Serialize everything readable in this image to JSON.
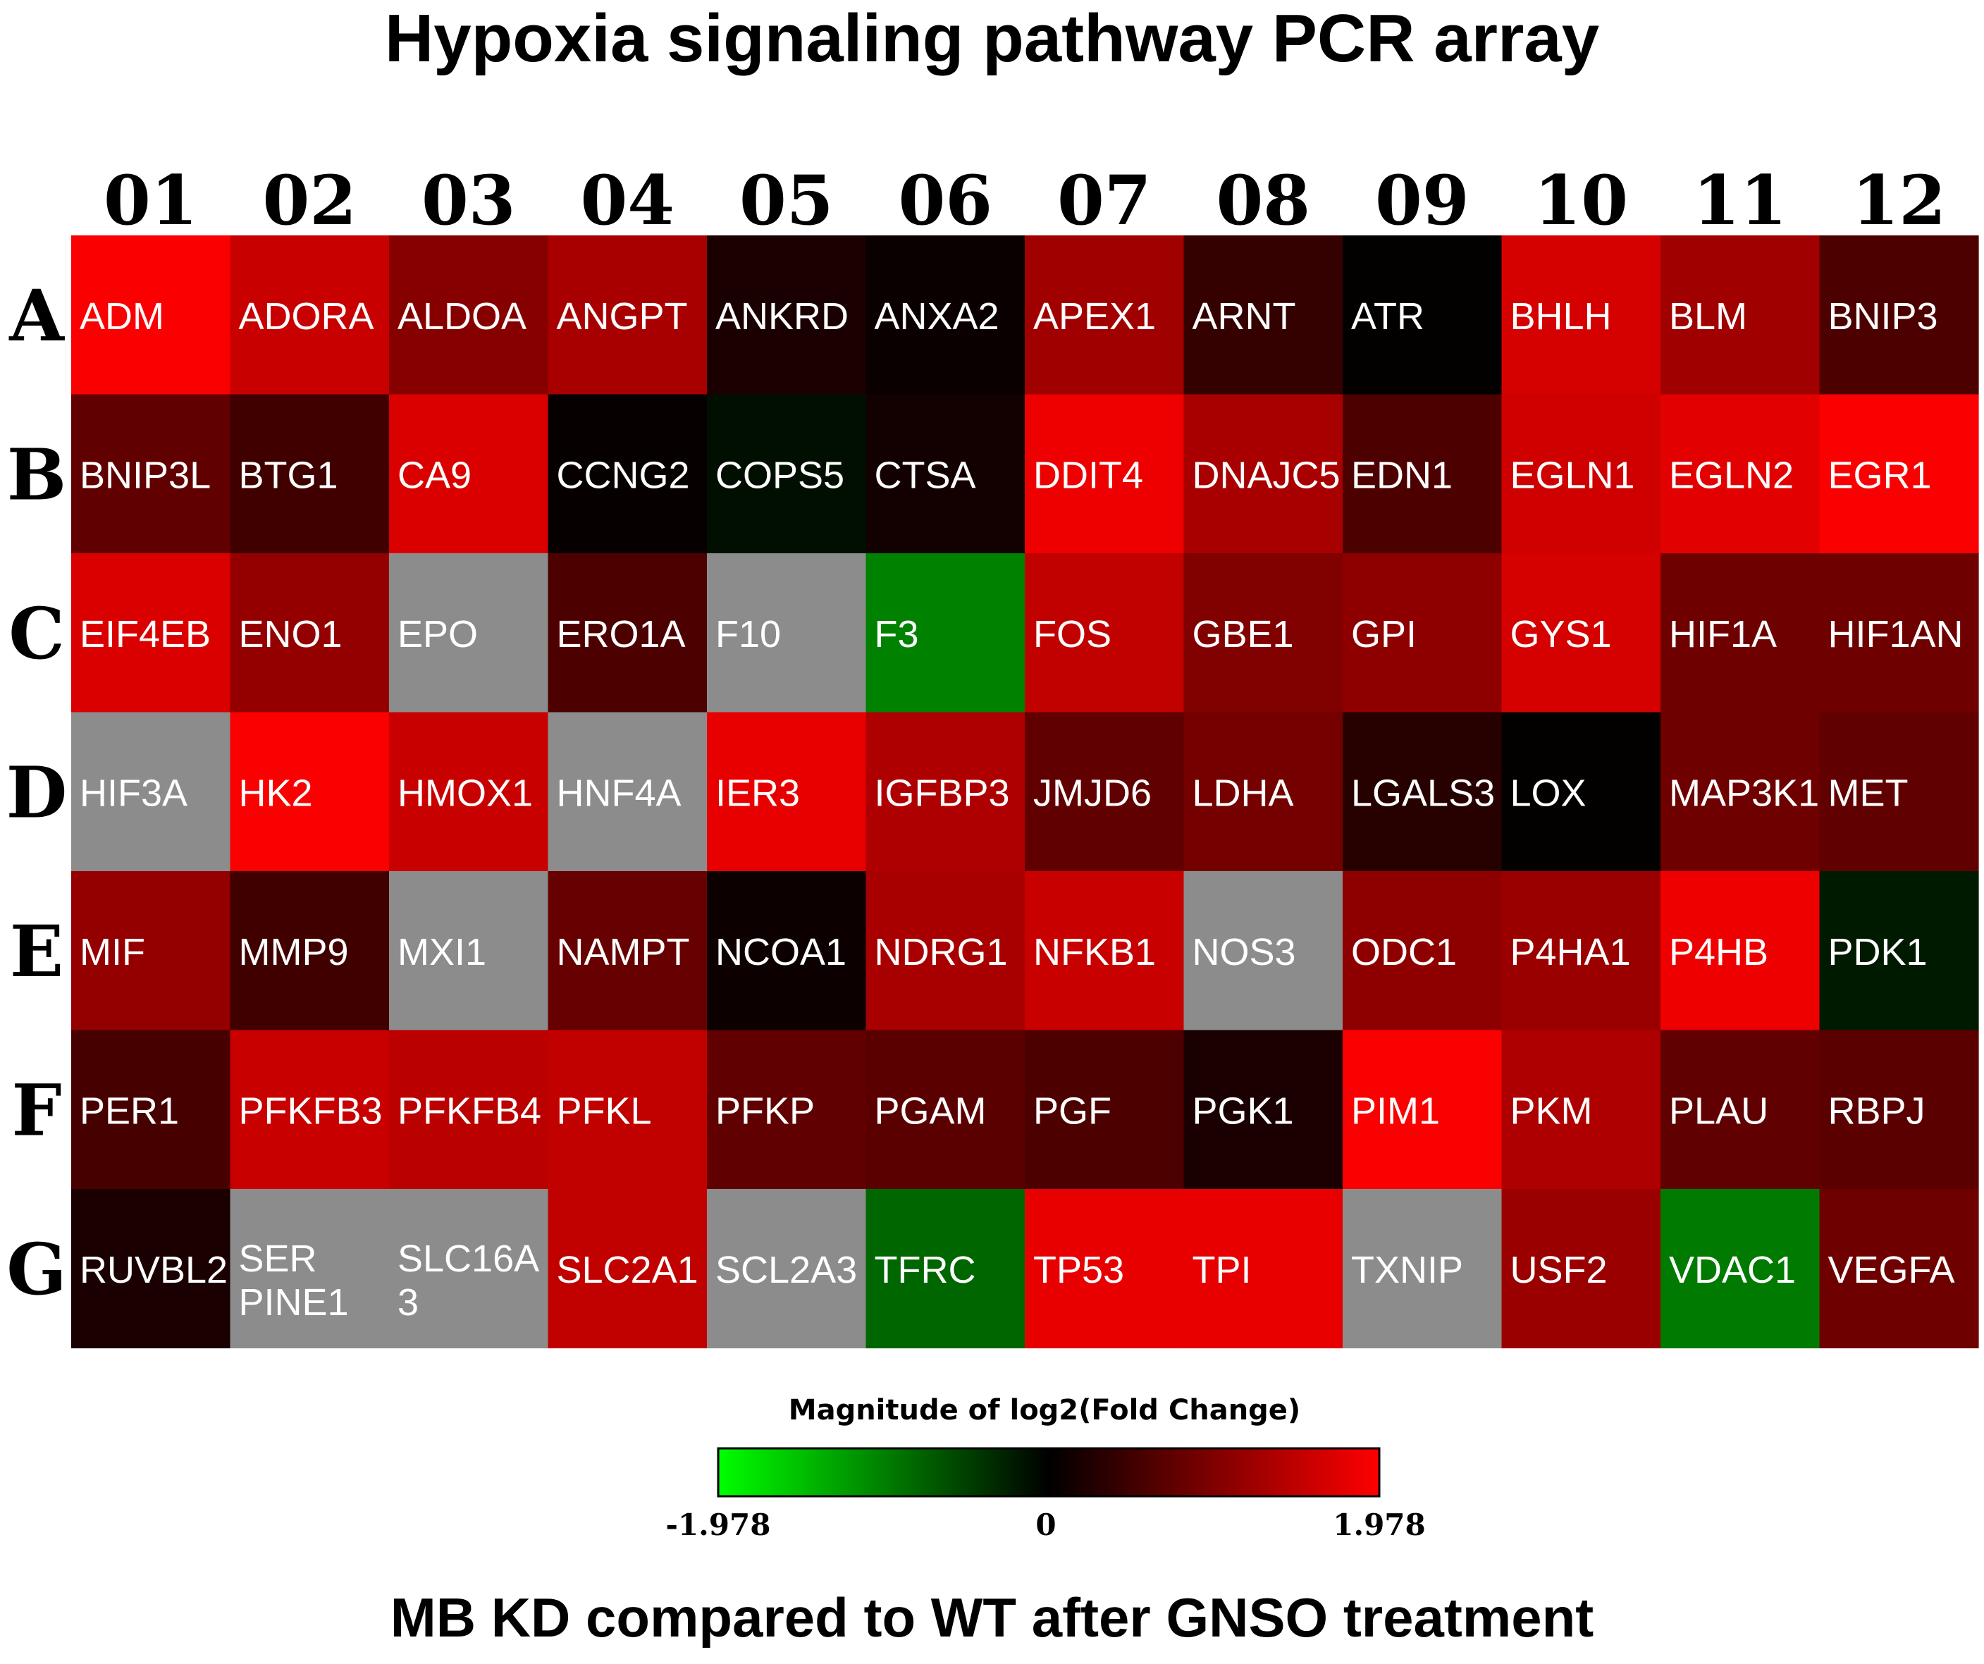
{
  "title": "Hypoxia signaling pathway PCR array",
  "subtitle": "MB KD compared to WT after GNSO treatment",
  "chart_data": {
    "type": "heatmap",
    "columns": [
      "01",
      "02",
      "03",
      "04",
      "05",
      "06",
      "07",
      "08",
      "09",
      "10",
      "11",
      "12"
    ],
    "rows": [
      "A",
      "B",
      "C",
      "D",
      "E",
      "F",
      "G"
    ],
    "cells": [
      [
        {
          "gene": "ADM",
          "value": 1.95
        },
        {
          "gene": "ADORA",
          "value": 1.55
        },
        {
          "gene": "ALDOA",
          "value": 1.05
        },
        {
          "gene": "ANGPT",
          "value": 1.3
        },
        {
          "gene": "ANKRD",
          "value": 0.2
        },
        {
          "gene": "ANXA2",
          "value": 0.08
        },
        {
          "gene": "APEX1",
          "value": 1.25
        },
        {
          "gene": "ARNT",
          "value": 0.4
        },
        {
          "gene": "ATR",
          "value": 0.02
        },
        {
          "gene": "BHLH",
          "value": 1.65
        },
        {
          "gene": "BLM",
          "value": 1.25
        },
        {
          "gene": "BNIP3",
          "value": 0.6
        }
      ],
      [
        {
          "gene": "BNIP3L",
          "value": 0.75
        },
        {
          "gene": "BTG1",
          "value": 0.5
        },
        {
          "gene": "CA9",
          "value": 1.7
        },
        {
          "gene": "CCNG2",
          "value": 0.05
        },
        {
          "gene": "COPS5",
          "value": -0.12
        },
        {
          "gene": "CTSA",
          "value": 0.15
        },
        {
          "gene": "DDIT4",
          "value": 1.85
        },
        {
          "gene": "DNAJC5",
          "value": 1.3
        },
        {
          "gene": "EDN1",
          "value": 0.6
        },
        {
          "gene": "EGLN1",
          "value": 1.6
        },
        {
          "gene": "EGLN2",
          "value": 1.75
        },
        {
          "gene": "EGR1",
          "value": 1.95
        }
      ],
      [
        {
          "gene": "EIF4EB",
          "value": 1.7
        },
        {
          "gene": "ENO1",
          "value": 1.15
        },
        {
          "gene": "EPO",
          "value": null
        },
        {
          "gene": "ERO1A",
          "value": 0.6
        },
        {
          "gene": "F10",
          "value": null
        },
        {
          "gene": "F3",
          "value": -1.0
        },
        {
          "gene": "FOS",
          "value": 1.5
        },
        {
          "gene": "GBE1",
          "value": 1.0
        },
        {
          "gene": "GPI",
          "value": 1.1
        },
        {
          "gene": "GYS1",
          "value": 1.65
        },
        {
          "gene": "HIF1A",
          "value": 0.85
        },
        {
          "gene": "HIF1AN",
          "value": 0.85
        }
      ],
      [
        {
          "gene": "HIF3A",
          "value": null
        },
        {
          "gene": "HK2",
          "value": 1.95
        },
        {
          "gene": "HMOX1",
          "value": 1.55
        },
        {
          "gene": "HNF4A",
          "value": null
        },
        {
          "gene": "IER3",
          "value": 1.8
        },
        {
          "gene": "IGFBP3",
          "value": 1.35
        },
        {
          "gene": "JMJD6",
          "value": 0.75
        },
        {
          "gene": "LDHA",
          "value": 0.9
        },
        {
          "gene": "LGALS3",
          "value": 0.3
        },
        {
          "gene": "LOX",
          "value": 0.02
        },
        {
          "gene": "MAP3K1",
          "value": 0.85
        },
        {
          "gene": "MET",
          "value": 0.75
        }
      ],
      [
        {
          "gene": "MIF",
          "value": 1.15
        },
        {
          "gene": "MMP9",
          "value": 0.5
        },
        {
          "gene": "MXI1",
          "value": null
        },
        {
          "gene": "NAMPT",
          "value": 0.8
        },
        {
          "gene": "NCOA1",
          "value": 0.1
        },
        {
          "gene": "NDRG1",
          "value": 1.3
        },
        {
          "gene": "NFKB1",
          "value": 1.55
        },
        {
          "gene": "NOS3",
          "value": null
        },
        {
          "gene": "ODC1",
          "value": 1.1
        },
        {
          "gene": "P4HA1",
          "value": 1.2
        },
        {
          "gene": "P4HB",
          "value": 1.85
        },
        {
          "gene": "PDK1",
          "value": -0.2
        }
      ],
      [
        {
          "gene": "PER1",
          "value": 0.55
        },
        {
          "gene": "PFKFB3",
          "value": 1.55
        },
        {
          "gene": "PFKFB4",
          "value": 1.45
        },
        {
          "gene": "PFKL",
          "value": 1.5
        },
        {
          "gene": "PFKP",
          "value": 0.75
        },
        {
          "gene": "PGAM",
          "value": 0.7
        },
        {
          "gene": "PGF",
          "value": 0.6
        },
        {
          "gene": "PGK1",
          "value": 0.2
        },
        {
          "gene": "PIM1",
          "value": 1.95
        },
        {
          "gene": "PKM",
          "value": 1.35
        },
        {
          "gene": "PLAU",
          "value": 0.75
        },
        {
          "gene": "RBPJ",
          "value": 0.7
        }
      ],
      [
        {
          "gene": "RUVBL2",
          "value": 0.2
        },
        {
          "gene": "SER\nPINE1",
          "value": null
        },
        {
          "gene": "SLC16A\n3",
          "value": null
        },
        {
          "gene": "SLC2A1",
          "value": 1.5
        },
        {
          "gene": "SCL2A3",
          "value": null
        },
        {
          "gene": "TFRC",
          "value": -0.8
        },
        {
          "gene": "TP53",
          "value": 1.8
        },
        {
          "gene": "TPI",
          "value": 1.8
        },
        {
          "gene": "TXNIP",
          "value": null
        },
        {
          "gene": "USF2",
          "value": 1.2
        },
        {
          "gene": "VDAC1",
          "value": -0.95
        },
        {
          "gene": "VEGFA",
          "value": 0.85
        }
      ]
    ],
    "colorbar": {
      "label": "Magnitude of log2(Fold Change)",
      "min": -1.978,
      "mid": 0,
      "max": 1.978,
      "tick_labels": [
        "-1.978",
        "0",
        "1.978"
      ],
      "colors": {
        "low": "#00ff00",
        "mid": "#000000",
        "high": "#ff0000"
      }
    },
    "missing_color": "#8c8c8c"
  }
}
